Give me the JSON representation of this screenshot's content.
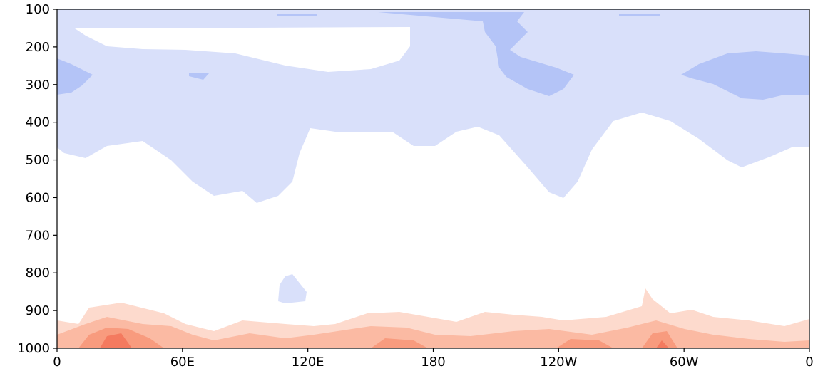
{
  "chart_data": {
    "type": "contourf",
    "xlim": [
      0,
      360
    ],
    "xticks": [
      0,
      {
        "value": 60,
        "label": "60E"
      },
      {
        "value": 120,
        "label": "120E"
      },
      180,
      {
        "value": 240,
        "label": "120W"
      },
      {
        "value": 300,
        "label": "60W"
      },
      {
        "value": 360,
        "label": "0"
      }
    ],
    "ylim": [
      100,
      1000
    ],
    "yticks": [
      100,
      200,
      300,
      400,
      500,
      600,
      700,
      800,
      900,
      1000
    ],
    "invert_y": true
  }
}
